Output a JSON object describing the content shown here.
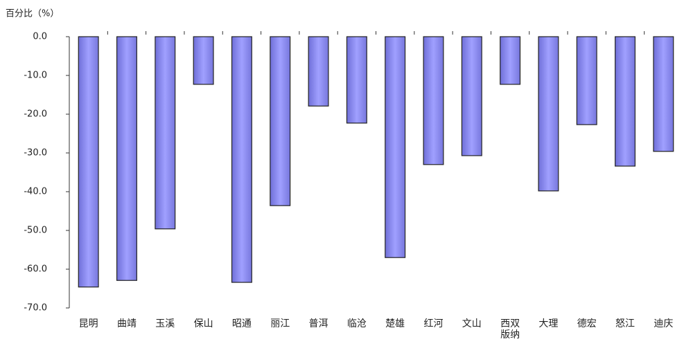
{
  "chart_data": {
    "type": "bar",
    "title": "百分比（%）",
    "categories": [
      "昆明",
      "曲靖",
      "玉溪",
      "保山",
      "昭通",
      "丽江",
      "普洱",
      "临沧",
      "楚雄",
      "红河",
      "文山",
      "西双版纳",
      "大理",
      "德宏",
      "怒江",
      "迪庆"
    ],
    "values": [
      -64.6,
      -62.9,
      -49.6,
      -12.3,
      -63.4,
      -43.6,
      -17.9,
      -22.3,
      -57.0,
      -33.0,
      -30.7,
      -12.3,
      -39.8,
      -22.7,
      -33.4,
      -29.6
    ],
    "color": "#8c8cf0",
    "ylim": [
      -70,
      0
    ],
    "yticks": [
      {
        "value": 0,
        "label": "0.0"
      },
      {
        "value": -10,
        "label": "-10.0"
      },
      {
        "value": -20,
        "label": "-20.0"
      },
      {
        "value": -30,
        "label": "-30.0"
      },
      {
        "value": -40,
        "label": "-40.0"
      },
      {
        "value": -50,
        "label": "-50.0"
      },
      {
        "value": -60,
        "label": "-60.0"
      },
      {
        "value": -70,
        "label": "-70.0"
      }
    ],
    "grid": false
  }
}
